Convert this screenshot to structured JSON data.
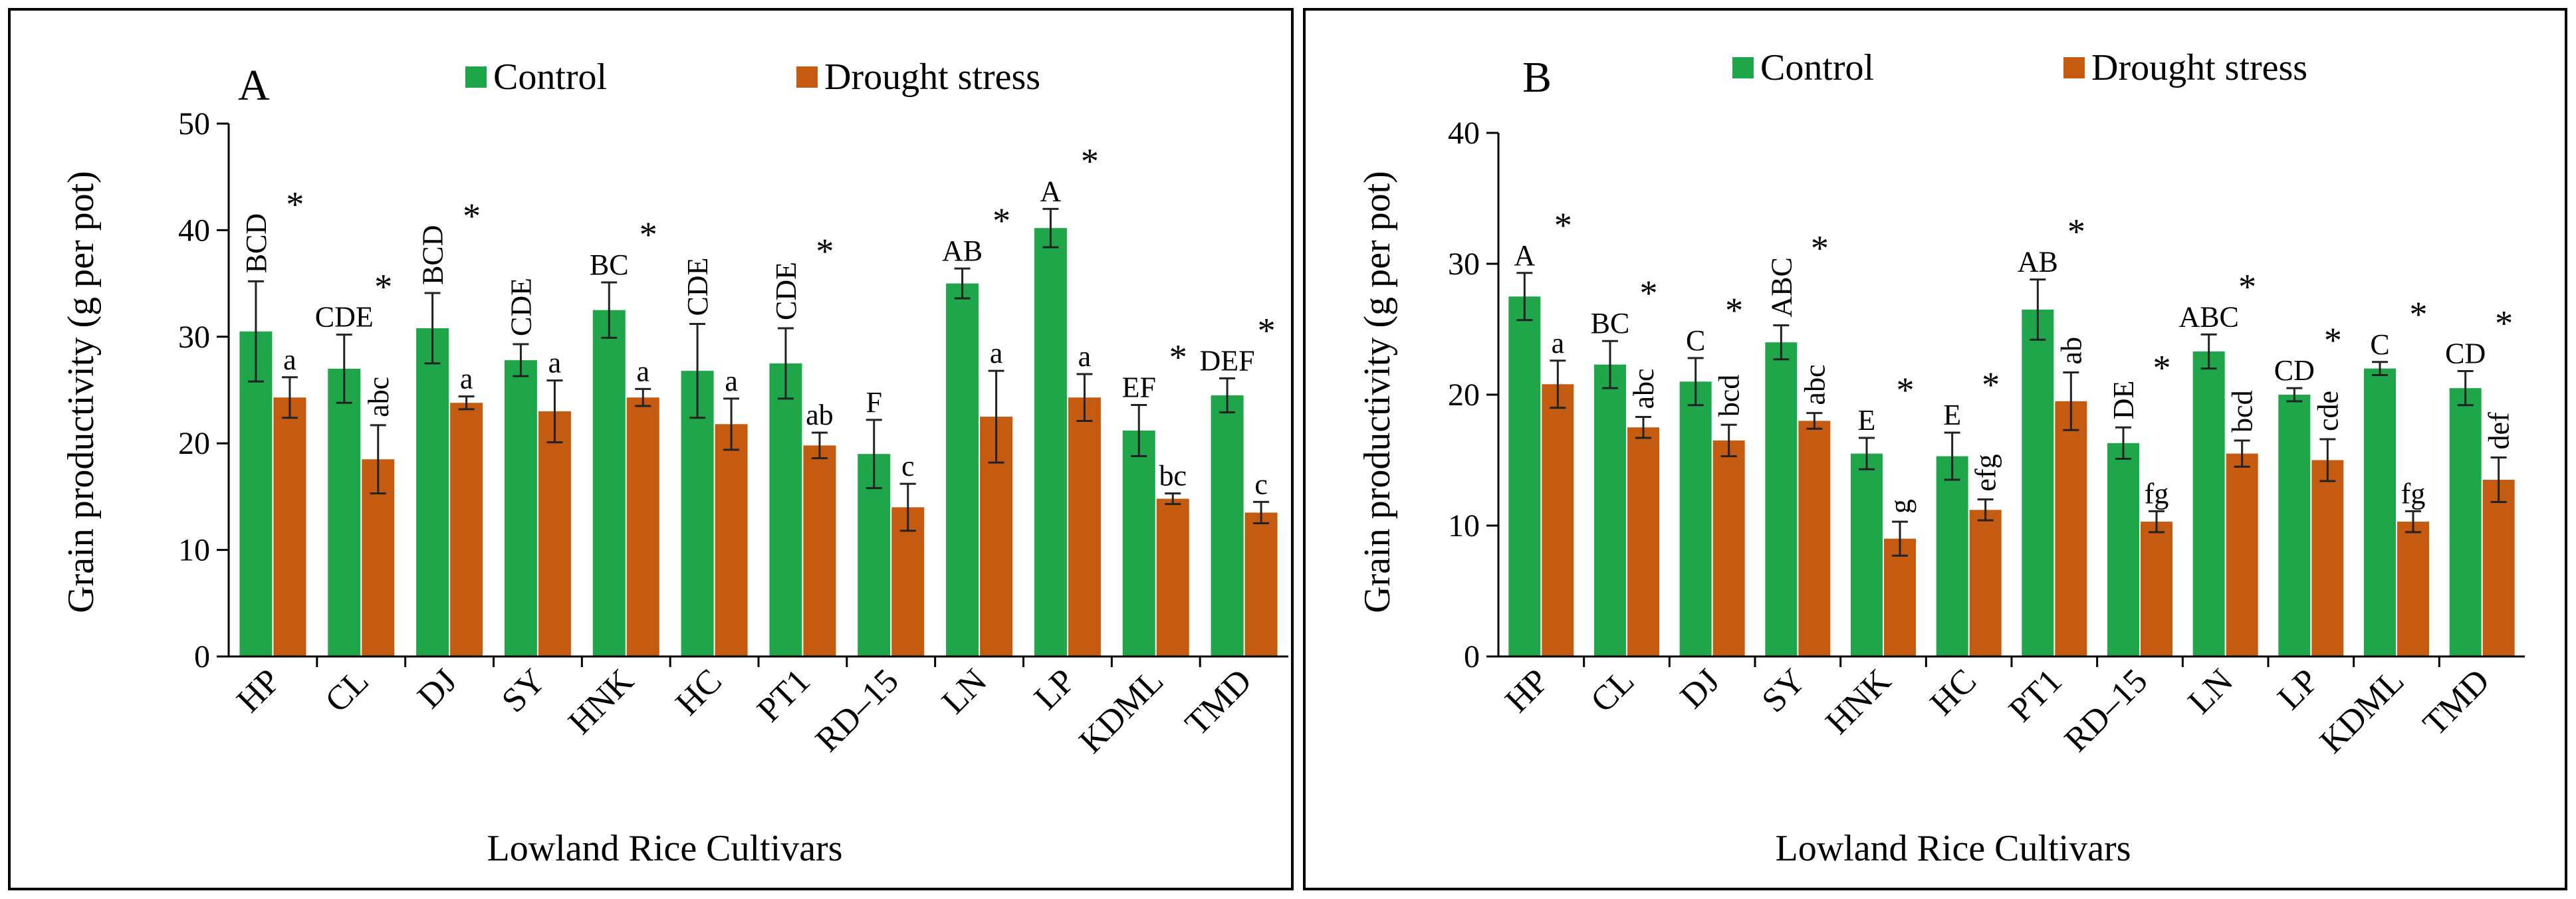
{
  "colors": {
    "control": "#1FA64A",
    "drought": "#C55A11"
  },
  "chart_data": [
    {
      "type": "bar",
      "panel_label": "A",
      "ylabel": "Grain productivity (g per pot)",
      "xlabel": "Lowland Rice Cultivars",
      "ylim": [
        0,
        50
      ],
      "yticks": [
        "0",
        "10",
        "20",
        "30",
        "40",
        "50"
      ],
      "legend_position": "top",
      "categories": [
        "HP",
        "CL",
        "DJ",
        "SY",
        "HNK",
        "HC",
        "PT1",
        "RD–15",
        "LN",
        "LP",
        "KDML",
        "TMD"
      ],
      "series": [
        {
          "name": "Control",
          "values": [
            30.5,
            27,
            30.8,
            27.8,
            32.5,
            26.8,
            27.5,
            19,
            35,
            40.2,
            21.2,
            24.5
          ],
          "errors": [
            4.7,
            3.2,
            3.3,
            1.5,
            2.6,
            4.4,
            3.3,
            3.2,
            1.4,
            1.8,
            2.4,
            1.6
          ],
          "letters": [
            "BCD",
            "CDE",
            "BCD",
            "CDE",
            "BC",
            "CDE",
            "CDE",
            "F",
            "AB",
            "A",
            "EF",
            "DEF"
          ],
          "rotated": [
            true,
            false,
            true,
            true,
            false,
            true,
            true,
            false,
            false,
            false,
            false,
            false
          ]
        },
        {
          "name": "Drought stress",
          "values": [
            24.3,
            18.5,
            23.8,
            23,
            24.3,
            21.8,
            19.8,
            14,
            22.5,
            24.3,
            14.8,
            13.5
          ],
          "errors": [
            1.9,
            3.2,
            0.6,
            2.9,
            0.8,
            2.4,
            1.2,
            2.2,
            4.3,
            2.2,
            0.5,
            1.0
          ],
          "letters": [
            "a",
            "abc",
            "a",
            "a",
            "a",
            "a",
            "ab",
            "c",
            "a",
            "a",
            "bc",
            "c"
          ],
          "rotated": [
            false,
            true,
            false,
            false,
            false,
            false,
            false,
            false,
            false,
            false,
            false,
            false
          ]
        }
      ],
      "significant": [
        true,
        true,
        true,
        false,
        true,
        false,
        true,
        false,
        true,
        true,
        true,
        true
      ],
      "significance_marker": "*"
    },
    {
      "type": "bar",
      "panel_label": "B",
      "ylabel": "Grain productivity (g per pot)",
      "xlabel": "Lowland Rice Cultivars",
      "ylim": [
        0,
        40
      ],
      "yticks": [
        "0",
        "10",
        "20",
        "30",
        "40"
      ],
      "legend_position": "top",
      "categories": [
        "HP",
        "CL",
        "DJ",
        "SY",
        "HNK",
        "HC",
        "PT1",
        "RD–15",
        "LN",
        "LP",
        "KDML",
        "TMD"
      ],
      "series": [
        {
          "name": "Control",
          "values": [
            27.5,
            22.3,
            21,
            24,
            15.5,
            15.3,
            26.5,
            16.3,
            23.3,
            20,
            22,
            20.5
          ],
          "errors": [
            1.8,
            1.8,
            1.8,
            1.3,
            1.2,
            1.8,
            2.3,
            1.2,
            1.3,
            0.5,
            0.5,
            1.3
          ],
          "letters": [
            "A",
            "BC",
            "C",
            "ABC",
            "E",
            "E",
            "AB",
            "DE",
            "ABC",
            "CD",
            "C",
            "CD"
          ],
          "rotated": [
            false,
            false,
            false,
            true,
            false,
            false,
            false,
            true,
            false,
            false,
            false,
            false
          ]
        },
        {
          "name": "Drought stress",
          "values": [
            20.8,
            17.5,
            16.5,
            18,
            9,
            11.2,
            19.5,
            10.3,
            15.5,
            15,
            10.3,
            13.5
          ],
          "errors": [
            1.8,
            0.8,
            1.2,
            0.6,
            1.3,
            0.8,
            2.2,
            0.8,
            1.0,
            1.6,
            0.8,
            1.7
          ],
          "letters": [
            "a",
            "abc",
            "bcd",
            "abc",
            "g",
            "efg",
            "ab",
            "fg",
            "bcd",
            "cde",
            "fg",
            "def"
          ],
          "rotated": [
            false,
            true,
            true,
            true,
            true,
            true,
            true,
            false,
            true,
            true,
            false,
            true
          ]
        }
      ],
      "significant": [
        true,
        true,
        true,
        true,
        true,
        true,
        true,
        true,
        true,
        true,
        true,
        true
      ],
      "significance_marker": "*"
    }
  ]
}
